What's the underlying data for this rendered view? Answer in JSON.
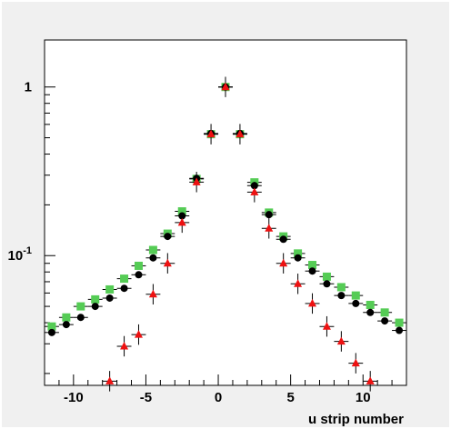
{
  "chart_data": {
    "type": "scatter",
    "title": "",
    "xlabel": "u strip number",
    "ylabel": "",
    "xlim": [
      -12,
      13
    ],
    "ylim": [
      0.017,
      1.9
    ],
    "yscale": "log",
    "grid": false,
    "x_ticks": [
      {
        "value": -10,
        "label": "-10"
      },
      {
        "value": -5,
        "label": "-5"
      },
      {
        "value": 0,
        "label": "0"
      },
      {
        "value": 5,
        "label": "5"
      },
      {
        "value": 10,
        "label": "10"
      }
    ],
    "y_ticks": [
      {
        "value": 1,
        "label": "1"
      },
      {
        "value": 0.1,
        "label": "10^-1"
      }
    ],
    "x_error_halfwidth": 0.5,
    "series": [
      {
        "marker": "square",
        "color": "#55cc55",
        "points": [
          [
            -11.5,
            0.038
          ],
          [
            -10.5,
            0.043
          ],
          [
            -9.5,
            0.05
          ],
          [
            -8.5,
            0.055
          ],
          [
            -7.5,
            0.063
          ],
          [
            -6.5,
            0.073
          ],
          [
            -5.5,
            0.087
          ],
          [
            -4.5,
            0.108
          ],
          [
            -3.5,
            0.135
          ],
          [
            -2.5,
            0.183
          ],
          [
            -1.5,
            0.285
          ],
          [
            -0.5,
            0.525
          ],
          [
            0.5,
            1.0
          ],
          [
            1.5,
            0.525
          ],
          [
            2.5,
            0.272
          ],
          [
            3.5,
            0.18
          ],
          [
            4.5,
            0.13
          ],
          [
            5.5,
            0.103
          ],
          [
            6.5,
            0.088
          ],
          [
            7.5,
            0.075
          ],
          [
            8.5,
            0.065
          ],
          [
            9.5,
            0.058
          ],
          [
            10.5,
            0.051
          ],
          [
            11.5,
            0.046
          ],
          [
            12.5,
            0.04
          ]
        ]
      },
      {
        "marker": "circle",
        "color": "#000000",
        "points": [
          [
            -11.5,
            0.035
          ],
          [
            -10.5,
            0.039
          ],
          [
            -9.5,
            0.043
          ],
          [
            -8.5,
            0.05
          ],
          [
            -7.5,
            0.056
          ],
          [
            -6.5,
            0.064
          ],
          [
            -5.5,
            0.077
          ],
          [
            -4.5,
            0.097
          ],
          [
            -3.5,
            0.13
          ],
          [
            -2.5,
            0.172
          ],
          [
            -1.5,
            0.287
          ],
          [
            -0.5,
            0.53
          ],
          [
            0.5,
            1.0
          ],
          [
            1.5,
            0.53
          ],
          [
            2.5,
            0.26
          ],
          [
            3.5,
            0.175
          ],
          [
            4.5,
            0.125
          ],
          [
            5.5,
            0.097
          ],
          [
            6.5,
            0.081
          ],
          [
            7.5,
            0.068
          ],
          [
            8.5,
            0.058
          ],
          [
            9.5,
            0.052
          ],
          [
            10.5,
            0.046
          ],
          [
            11.5,
            0.041
          ],
          [
            12.5,
            0.036
          ]
        ]
      },
      {
        "marker": "triangle",
        "color": "#ee1111",
        "y_errors": true,
        "points": [
          [
            -7.5,
            0.018
          ],
          [
            -6.5,
            0.029
          ],
          [
            -5.5,
            0.034
          ],
          [
            -4.5,
            0.059
          ],
          [
            -3.5,
            0.09
          ],
          [
            -2.5,
            0.157
          ],
          [
            -1.5,
            0.273
          ],
          [
            -0.5,
            0.525
          ],
          [
            0.5,
            1.0
          ],
          [
            1.5,
            0.525
          ],
          [
            2.5,
            0.238
          ],
          [
            3.5,
            0.145
          ],
          [
            4.5,
            0.09
          ],
          [
            5.5,
            0.068
          ],
          [
            6.5,
            0.052
          ],
          [
            7.5,
            0.038
          ],
          [
            8.5,
            0.031
          ],
          [
            9.5,
            0.023
          ],
          [
            10.5,
            0.018
          ]
        ]
      }
    ]
  }
}
